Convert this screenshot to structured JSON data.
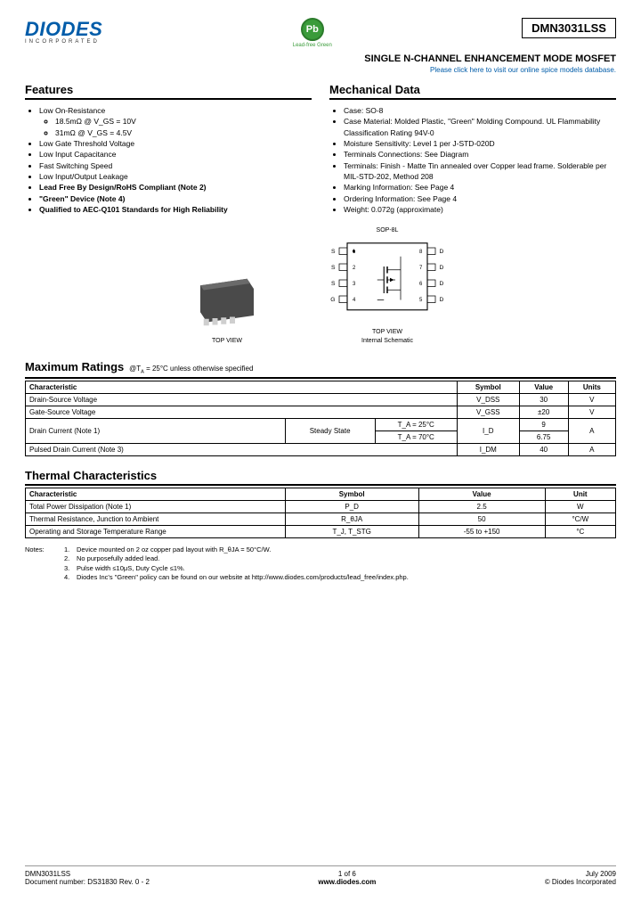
{
  "header": {
    "logo_main": "DIODES",
    "logo_sub": "INCORPORATED",
    "pb_symbol": "Pb",
    "pb_label": "Lead-free Green",
    "part_number": "DMN3031LSS",
    "subtitle": "SINGLE N-CHANNEL ENHANCEMENT MODE MOSFET",
    "spice_link": "Please click here to visit our online spice models database."
  },
  "features": {
    "title": "Features",
    "items": [
      {
        "text": "Low On-Resistance",
        "sub": [
          "18.5mΩ @ V_GS = 10V",
          "31mΩ @ V_GS = 4.5V"
        ]
      },
      {
        "text": "Low Gate Threshold Voltage"
      },
      {
        "text": "Low Input Capacitance"
      },
      {
        "text": "Fast Switching Speed"
      },
      {
        "text": "Low Input/Output Leakage"
      },
      {
        "text": "Lead Free By Design/RoHS Compliant (Note 2)",
        "bold": true
      },
      {
        "text": "\"Green\" Device (Note 4)",
        "bold": true
      },
      {
        "text": "Qualified to AEC-Q101 Standards for High Reliability",
        "bold": true
      }
    ]
  },
  "mechanical": {
    "title": "Mechanical Data",
    "items": [
      "Case: SO-8",
      "Case Material: Molded Plastic, \"Green\" Molding Compound. UL Flammability Classification Rating 94V-0",
      "Moisture Sensitivity: Level 1 per J-STD-020D",
      "Terminals Connections: See Diagram",
      "Terminals: Finish - Matte Tin annealed over Copper lead frame. Solderable per MIL-STD-202, Method 208",
      "Marking Information: See Page 4",
      "Ordering Information: See Page 4",
      "Weight: 0.072g (approximate)"
    ]
  },
  "package": {
    "sop_label": "SOP-8L",
    "top_view": "TOP VIEW",
    "schematic_label1": "TOP VIEW",
    "schematic_label2": "Internal Schematic",
    "pins_left": [
      "S",
      "S",
      "S",
      "G"
    ],
    "pins_right": [
      "D",
      "D",
      "D",
      "D"
    ],
    "pin_nums_left": [
      "1",
      "2",
      "3",
      "4"
    ],
    "pin_nums_right": [
      "8",
      "7",
      "6",
      "5"
    ]
  },
  "max_ratings": {
    "title": "Maximum Ratings",
    "condition": "@T_A = 25°C unless otherwise specified",
    "headers": [
      "Characteristic",
      "Symbol",
      "Value",
      "Units"
    ],
    "rows": [
      {
        "c": "Drain-Source Voltage",
        "s": "V_DSS",
        "v": "30",
        "u": "V"
      },
      {
        "c": "Gate-Source Voltage",
        "s": "V_GSS",
        "v": "±20",
        "u": "V"
      }
    ],
    "drain_current": {
      "c": "Drain Current (Note 1)",
      "ss": "Steady State",
      "t1": "T_A = 25°C",
      "t2": "T_A = 70°C",
      "s": "I_D",
      "v1": "9",
      "v2": "6.75",
      "u": "A"
    },
    "pulsed": {
      "c": "Pulsed Drain Current (Note 3)",
      "s": "I_DM",
      "v": "40",
      "u": "A"
    }
  },
  "thermal": {
    "title": "Thermal Characteristics",
    "headers": [
      "Characteristic",
      "Symbol",
      "Value",
      "Unit"
    ],
    "rows": [
      {
        "c": "Total Power Dissipation (Note 1)",
        "s": "P_D",
        "v": "2.5",
        "u": "W"
      },
      {
        "c": "Thermal Resistance, Junction to Ambient",
        "s": "R_θJA",
        "v": "50",
        "u": "°C/W"
      },
      {
        "c": "Operating and Storage Temperature Range",
        "s": "T_J, T_STG",
        "v": "-55 to +150",
        "u": "°C"
      }
    ]
  },
  "notes": {
    "label": "Notes:",
    "items": [
      "Device mounted on 2 oz copper pad layout with R_θJA = 50°C/W.",
      "No purposefully added lead.",
      "Pulse width ≤10μS, Duty Cycle ≤1%.",
      "Diodes Inc's \"Green\" policy can be found on our website at http://www.diodes.com/products/lead_free/index.php."
    ]
  },
  "footer": {
    "part": "DMN3031LSS",
    "docnum": "Document number: DS31830 Rev. 0 - 2",
    "page": "1 of 6",
    "url": "www.diodes.com",
    "date": "July 2009",
    "copyright": "© Diodes Incorporated"
  },
  "colors": {
    "brand_blue": "#005ca9",
    "green": "#3a9b3a",
    "chip_body": "#4a4a4a",
    "chip_pin": "#cfcfcf"
  }
}
